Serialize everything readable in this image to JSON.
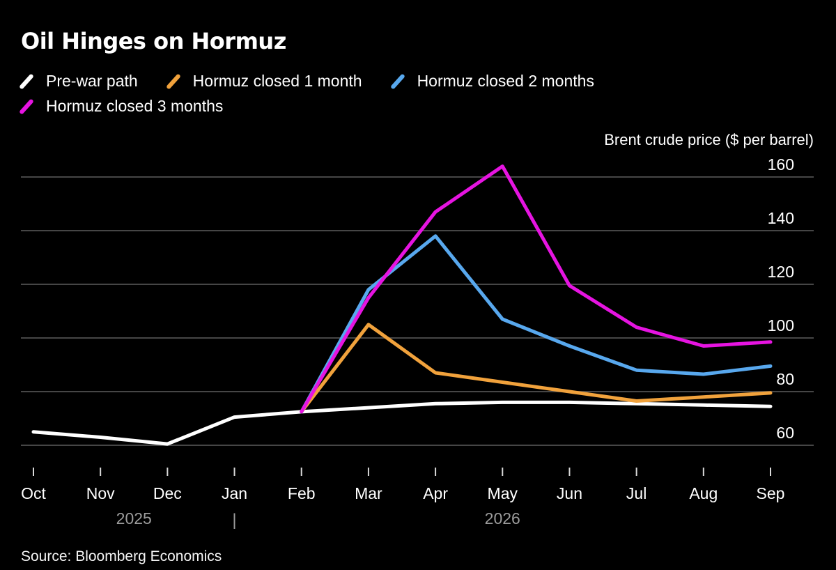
{
  "header": {
    "title": "Oil Hinges on Hormuz"
  },
  "chart_data": {
    "type": "line",
    "title": "Oil Hinges on Hormuz",
    "ylabel": "Brent crude price ($ per barrel)",
    "categories": [
      "Oct",
      "Nov",
      "Dec",
      "Jan",
      "Feb",
      "Mar",
      "Apr",
      "May",
      "Jun",
      "Jul",
      "Aug",
      "Sep"
    ],
    "year_labels": [
      {
        "label": "2025",
        "between": [
          "Nov",
          "Dec"
        ]
      },
      {
        "label": "2026",
        "at": "May"
      }
    ],
    "year_divider": {
      "label": "|",
      "at": "Jan"
    },
    "yticks": [
      60,
      80,
      100,
      120,
      140,
      160
    ],
    "ylim": [
      55,
      166
    ],
    "grid": true,
    "legend_position": "top-left",
    "series": [
      {
        "name": "Pre-war path",
        "color": "#ffffff",
        "values": [
          65,
          63,
          60.5,
          70.5,
          72.5,
          74,
          75.5,
          76,
          76,
          75.5,
          75,
          74.5
        ]
      },
      {
        "name": "Hormuz closed 1 month",
        "color": "#f1a23c",
        "values": [
          null,
          null,
          null,
          null,
          72.5,
          105,
          87,
          83.5,
          80,
          76.5,
          78,
          79.5
        ]
      },
      {
        "name": "Hormuz closed 2 months",
        "color": "#58a8ee",
        "values": [
          null,
          null,
          null,
          null,
          72.5,
          118,
          138,
          107,
          97,
          88,
          86.5,
          89.5
        ]
      },
      {
        "name": "Hormuz closed 3 months",
        "color": "#e614e1",
        "values": [
          null,
          null,
          null,
          null,
          72.5,
          115,
          147,
          164,
          119.5,
          104,
          97,
          98.5
        ]
      }
    ]
  },
  "colors": {
    "background": "#000000",
    "gridline": "#464646",
    "tick_mark": "#d9d9d9",
    "year_label": "#9c9c9c",
    "text": "#ffffff"
  },
  "footer": {
    "source": "Source: Bloomberg Economics"
  }
}
